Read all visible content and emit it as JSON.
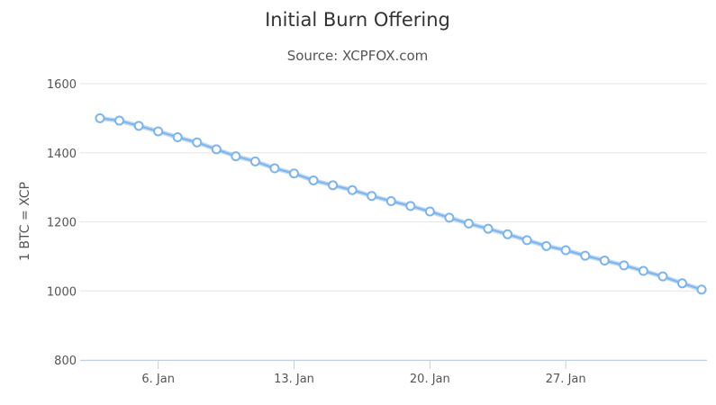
{
  "chart_data": {
    "type": "line",
    "title": "Initial Burn Offering",
    "subtitle": "Source: XCPFOX.com",
    "xlabel": "",
    "ylabel": "1 BTC = XCP",
    "ylim": [
      800,
      1600
    ],
    "yticks": [
      "800",
      "1000",
      "1200",
      "1400",
      "1600"
    ],
    "xtick_labels": [
      "6. Jan",
      "13. Jan",
      "20. Jan",
      "27. Jan"
    ],
    "grid": true,
    "legend": "none",
    "colors": {
      "series": "#7cb5ec",
      "halo": "#a7c7ee",
      "grid": "#e6e6e6"
    },
    "x_start": "2014-01-03",
    "series": [
      {
        "values": [
          1500,
          1493,
          1478,
          1462,
          1445,
          1430,
          1410,
          1390,
          1375,
          1355,
          1340,
          1320,
          1306,
          1292,
          1275,
          1260,
          1246,
          1230,
          1212,
          1195,
          1180,
          1164,
          1147,
          1130,
          1118,
          1102,
          1088,
          1074,
          1058,
          1042,
          1022,
          1004
        ]
      }
    ]
  }
}
